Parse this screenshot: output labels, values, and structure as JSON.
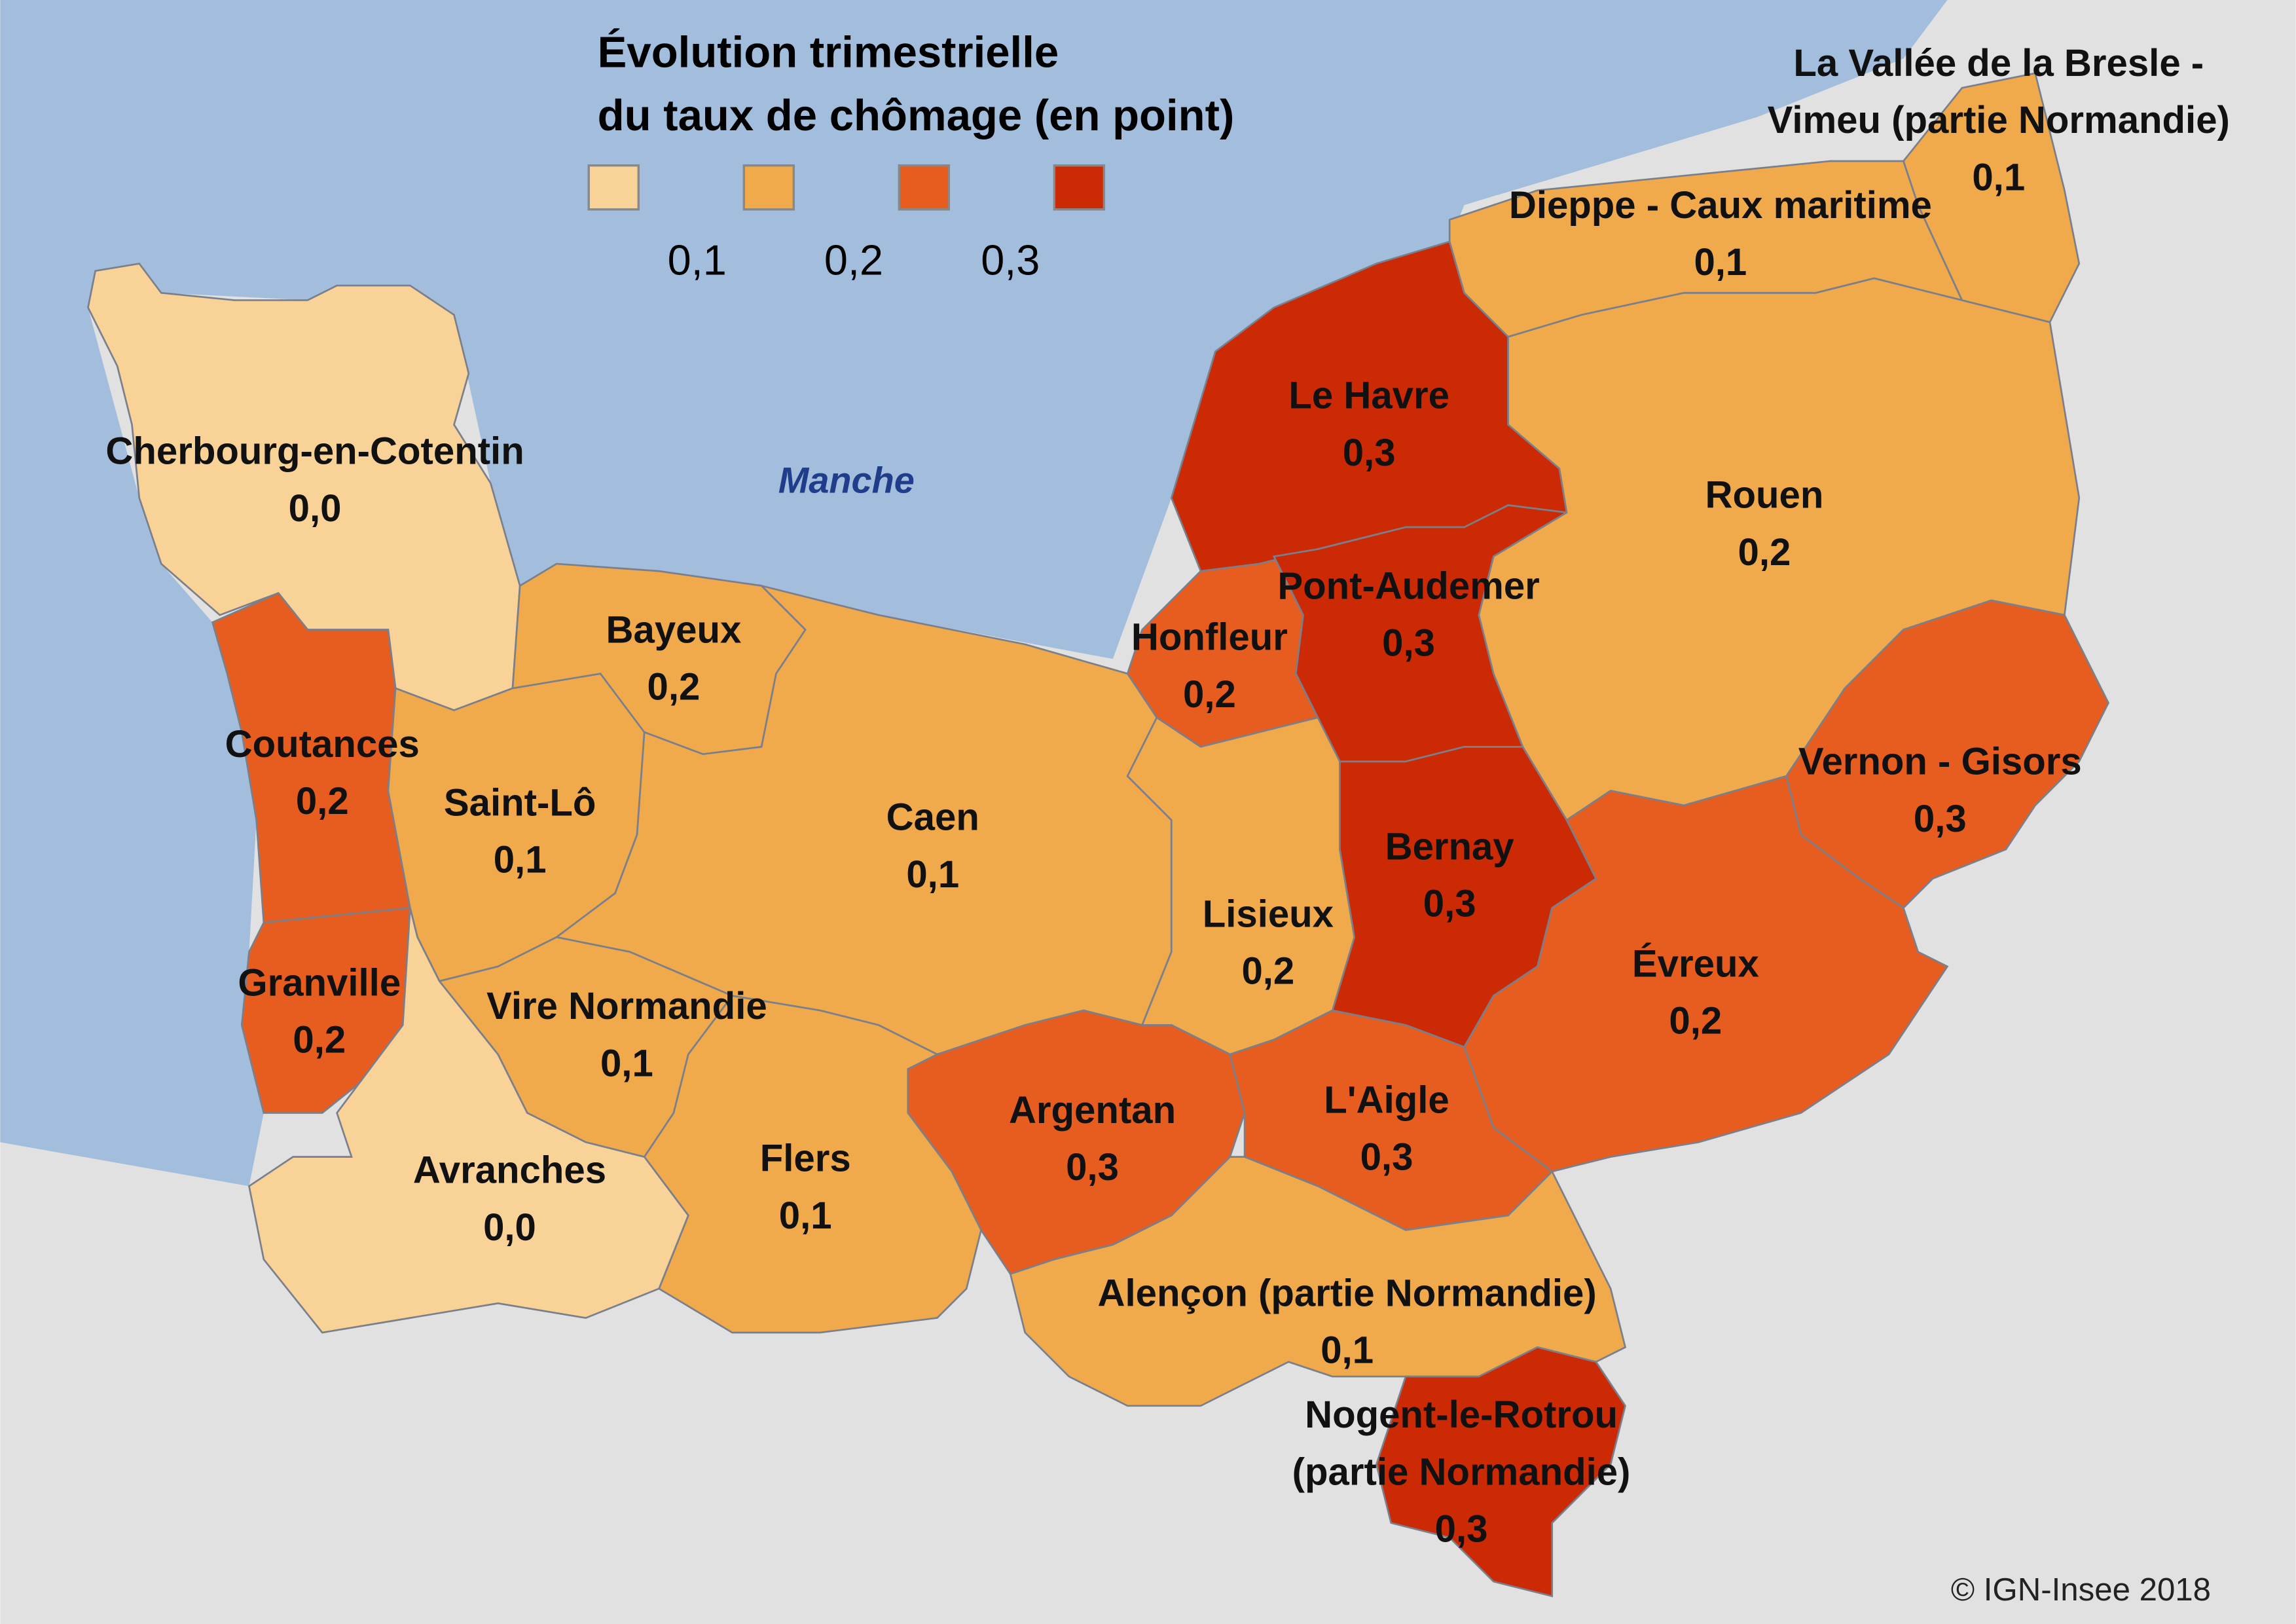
{
  "title": [
    "Évolution trimestrielle",
    "du taux de chômage (en point)"
  ],
  "legend": {
    "colors": [
      "#f9d298",
      "#f0a94b",
      "#e65d1f",
      "#cc2a04"
    ],
    "breaks": [
      "0,1",
      "0,2",
      "0,3"
    ]
  },
  "sea_label": "Manche",
  "regions": [
    {
      "name": [
        "Cherbourg-en-Cotentin"
      ],
      "value": "0,0",
      "color": "#f9d298"
    },
    {
      "name": [
        "Coutances"
      ],
      "value": "0,2",
      "color": "#e65d1f"
    },
    {
      "name": [
        "Granville"
      ],
      "value": "0,2",
      "color": "#e65d1f"
    },
    {
      "name": [
        "Saint-Lô"
      ],
      "value": "0,1",
      "color": "#f0a94b"
    },
    {
      "name": [
        "Bayeux"
      ],
      "value": "0,2",
      "color": "#f0a94b"
    },
    {
      "name": [
        "Caen"
      ],
      "value": "0,1",
      "color": "#f0a94b"
    },
    {
      "name": [
        "Honfleur"
      ],
      "value": "0,2",
      "color": "#e65d1f"
    },
    {
      "name": [
        "Le Havre"
      ],
      "value": "0,3",
      "color": "#cc2a04"
    },
    {
      "name": [
        "Pont-Audemer"
      ],
      "value": "0,3",
      "color": "#cc2a04"
    },
    {
      "name": [
        "Lisieux"
      ],
      "value": "0,2",
      "color": "#f0a94b"
    },
    {
      "name": [
        "Bernay"
      ],
      "value": "0,3",
      "color": "#cc2a04"
    },
    {
      "name": [
        "Rouen"
      ],
      "value": "0,2",
      "color": "#f0a94b"
    },
    {
      "name": [
        "Dieppe - Caux maritime"
      ],
      "value": "0,1",
      "color": "#f0a94b"
    },
    {
      "name": [
        "La Vallée de la Bresle -",
        "Vimeu (partie Normandie)"
      ],
      "value": "0,1",
      "color": "#f0a94b"
    },
    {
      "name": [
        "Vernon - Gisors"
      ],
      "value": "0,3",
      "color": "#e65d1f"
    },
    {
      "name": [
        "Évreux"
      ],
      "value": "0,2",
      "color": "#e65d1f"
    },
    {
      "name": [
        "Argentan"
      ],
      "value": "0,3",
      "color": "#e65d1f"
    },
    {
      "name": [
        "L'Aigle"
      ],
      "value": "0,3",
      "color": "#e65d1f"
    },
    {
      "name": [
        "Vire Normandie"
      ],
      "value": "0,1",
      "color": "#f0a94b"
    },
    {
      "name": [
        "Flers"
      ],
      "value": "0,1",
      "color": "#f0a94b"
    },
    {
      "name": [
        "Avranches"
      ],
      "value": "0,0",
      "color": "#f9d298"
    },
    {
      "name": [
        "Alençon (partie Normandie)"
      ],
      "value": "0,1",
      "color": "#f0a94b"
    },
    {
      "name": [
        "Nogent-le-Rotrou",
        "(partie Normandie)"
      ],
      "value": "0,3",
      "color": "#cc2a04"
    }
  ],
  "credit": "© IGN-Insee 2018"
}
